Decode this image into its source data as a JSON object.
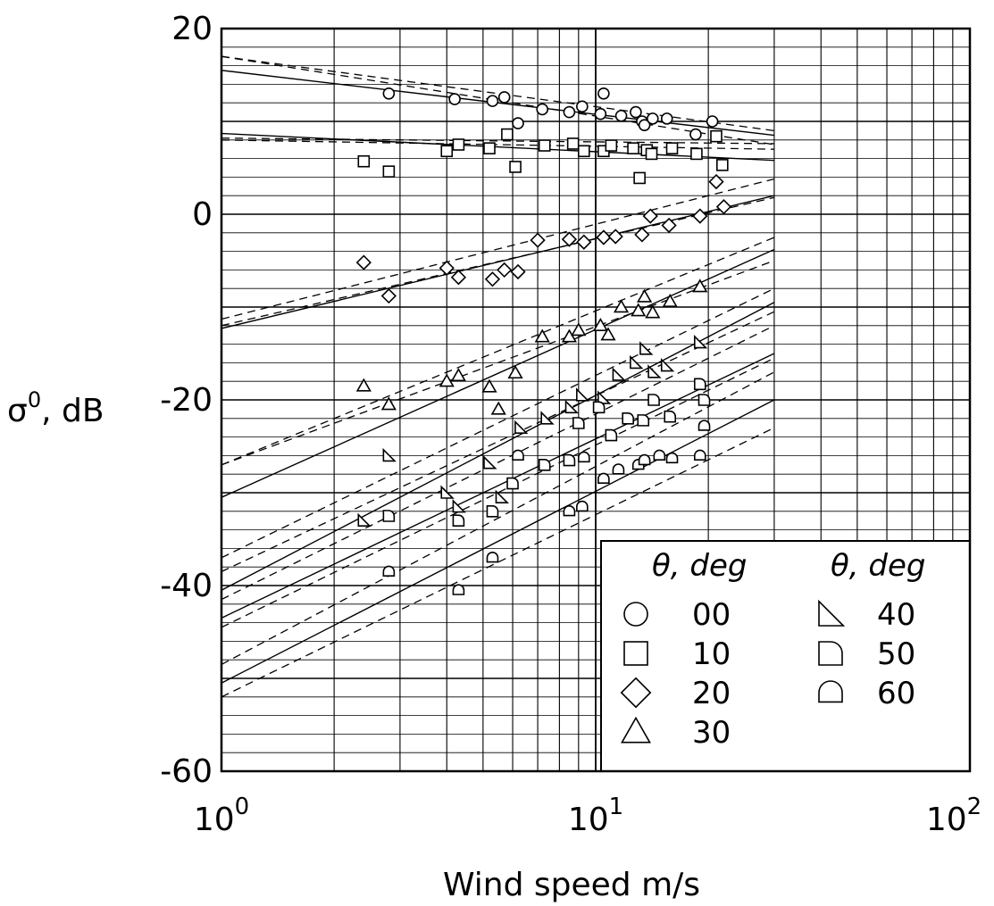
{
  "chart_data": {
    "type": "scatter",
    "title": "",
    "xlabel": "Wind speed m/s",
    "ylabel_base": "σ",
    "ylabel_sup": "0",
    "ylabel_rest": ", dB",
    "x_scale": "log",
    "xlim": [
      1,
      100
    ],
    "ylim": [
      -60,
      20
    ],
    "grid": true,
    "legend_position": "bottom-right",
    "y_ticks": [
      {
        "value": 20,
        "label": "20"
      },
      {
        "value": 0,
        "label": "0"
      },
      {
        "value": -20,
        "label": "-20"
      },
      {
        "value": -40,
        "label": "-40"
      },
      {
        "value": -60,
        "label": "-60"
      }
    ],
    "x_ticks": [
      {
        "value": 1,
        "base": "10",
        "exp": "0"
      },
      {
        "value": 10,
        "base": "10",
        "exp": "1"
      },
      {
        "value": 100,
        "base": "10",
        "exp": "2"
      }
    ],
    "legend": {
      "col1_header": "θ, deg",
      "col2_header": "θ, deg",
      "col1": [
        {
          "label": "00",
          "marker": "circle"
        },
        {
          "label": "10",
          "marker": "square"
        },
        {
          "label": "20",
          "marker": "diamond"
        },
        {
          "label": "30",
          "marker": "triangle"
        }
      ],
      "col2": [
        {
          "label": "40",
          "marker": "right-triangle"
        },
        {
          "label": "50",
          "marker": "d-shape"
        },
        {
          "label": "60",
          "marker": "dome"
        }
      ]
    },
    "series": [
      {
        "name": "00",
        "marker": "circle",
        "fit_solid": [
          [
            1,
            15.5
          ],
          [
            30,
            8.5
          ]
        ],
        "fit_dashed": [
          [
            [
              1,
              17
            ],
            [
              30,
              7.5
            ]
          ],
          [
            [
              1,
              17
            ],
            [
              30,
              9
            ]
          ]
        ],
        "points": [
          [
            2.8,
            13
          ],
          [
            4.2,
            12.4
          ],
          [
            5.3,
            12.2
          ],
          [
            5.7,
            12.6
          ],
          [
            6.2,
            9.8
          ],
          [
            7.2,
            11.3
          ],
          [
            8.5,
            11
          ],
          [
            9.2,
            11.6
          ],
          [
            10.3,
            10.8
          ],
          [
            10.5,
            13
          ],
          [
            11.7,
            10.6
          ],
          [
            12.8,
            11
          ],
          [
            13.3,
            10
          ],
          [
            13.5,
            9.6
          ],
          [
            14.2,
            10.3
          ],
          [
            15.5,
            10.3
          ],
          [
            18.5,
            8.6
          ],
          [
            20.5,
            10
          ]
        ]
      },
      {
        "name": "10",
        "marker": "square",
        "fit_solid": [
          [
            1,
            8.7
          ],
          [
            30,
            5.8
          ]
        ],
        "fit_dashed": [
          [
            [
              1,
              8
            ],
            [
              30,
              7
            ]
          ],
          [
            [
              1,
              8.2
            ],
            [
              30,
              7.6
            ]
          ]
        ],
        "points": [
          [
            2.4,
            5.7
          ],
          [
            2.8,
            4.6
          ],
          [
            4.0,
            6.8
          ],
          [
            4.3,
            7.5
          ],
          [
            5.2,
            7.1
          ],
          [
            5.8,
            8.6
          ],
          [
            6.1,
            5.1
          ],
          [
            7.3,
            7.4
          ],
          [
            8.7,
            7.6
          ],
          [
            9.3,
            6.8
          ],
          [
            10.5,
            6.8
          ],
          [
            11.0,
            7.4
          ],
          [
            12.6,
            7.1
          ],
          [
            13.1,
            3.9
          ],
          [
            13.7,
            6.9
          ],
          [
            14.1,
            6.5
          ],
          [
            16.0,
            7.1
          ],
          [
            18.6,
            6.5
          ],
          [
            21.0,
            8.4
          ],
          [
            21.8,
            5.3
          ]
        ]
      },
      {
        "name": "20",
        "marker": "diamond",
        "fit_solid": [
          [
            1,
            -12.3
          ],
          [
            30,
            2
          ]
        ],
        "fit_dashed": [
          [
            [
              1,
              -11.3
            ],
            [
              30,
              3.8
            ]
          ],
          [
            [
              1,
              -12
            ],
            [
              30,
              1.8
            ]
          ]
        ],
        "points": [
          [
            2.4,
            -5.2
          ],
          [
            2.8,
            -8.8
          ],
          [
            4.0,
            -5.8
          ],
          [
            4.3,
            -6.8
          ],
          [
            5.3,
            -7
          ],
          [
            5.7,
            -6
          ],
          [
            6.2,
            -6.2
          ],
          [
            7.0,
            -2.8
          ],
          [
            8.5,
            -2.7
          ],
          [
            9.3,
            -3
          ],
          [
            10.5,
            -2.5
          ],
          [
            11.3,
            -2.4
          ],
          [
            13.3,
            -2.2
          ],
          [
            14.0,
            -0.2
          ],
          [
            15.7,
            -1.2
          ],
          [
            19.0,
            -0.2
          ],
          [
            21.0,
            3.5
          ],
          [
            22.0,
            0.8
          ]
        ]
      },
      {
        "name": "30",
        "marker": "triangle",
        "fit_solid": [
          [
            1,
            -30.5
          ],
          [
            30,
            -3.8
          ]
        ],
        "fit_dashed": [
          [
            [
              1,
              -27
            ],
            [
              30,
              -2.5
            ]
          ],
          [
            [
              1,
              -27
            ],
            [
              30,
              -5
            ]
          ]
        ],
        "points": [
          [
            2.4,
            -18.5
          ],
          [
            2.8,
            -20.5
          ],
          [
            4.0,
            -18
          ],
          [
            4.3,
            -17.4
          ],
          [
            5.2,
            -18.6
          ],
          [
            5.5,
            -21
          ],
          [
            6.1,
            -17.1
          ],
          [
            7.2,
            -13.2
          ],
          [
            8.5,
            -13.2
          ],
          [
            9.0,
            -12.5
          ],
          [
            10.3,
            -12
          ],
          [
            10.8,
            -13
          ],
          [
            11.7,
            -10
          ],
          [
            13.0,
            -10.4
          ],
          [
            13.5,
            -8.9
          ],
          [
            14.2,
            -10.6
          ],
          [
            15.8,
            -9.4
          ],
          [
            19.0,
            -7.8
          ]
        ]
      },
      {
        "name": "40",
        "marker": "right-triangle",
        "fit_solid": [
          [
            1,
            -40.5
          ],
          [
            30,
            -9.5
          ]
        ],
        "fit_dashed": [
          [
            [
              1,
              -37
            ],
            [
              30,
              -8
            ]
          ],
          [
            [
              1,
              -38.5
            ],
            [
              30,
              -10.5
            ]
          ]
        ],
        "points": [
          [
            2.4,
            -33
          ],
          [
            2.8,
            -26
          ],
          [
            4.0,
            -30
          ],
          [
            4.3,
            -31.5
          ],
          [
            5.2,
            -26.8
          ],
          [
            5.6,
            -30.5
          ],
          [
            6.3,
            -23
          ],
          [
            7.4,
            -22
          ],
          [
            8.6,
            -20.8
          ],
          [
            9.2,
            -19.5
          ],
          [
            10.5,
            -19.8
          ],
          [
            11.5,
            -17.3
          ],
          [
            12.8,
            -16
          ],
          [
            13.6,
            -14.5
          ],
          [
            14.3,
            -17
          ],
          [
            15.5,
            -16.3
          ],
          [
            19.0,
            -13.8
          ]
        ]
      },
      {
        "name": "50",
        "marker": "d-shape",
        "fit_solid": [
          [
            1,
            -43.5
          ],
          [
            30,
            -15
          ]
        ],
        "fit_dashed": [
          [
            [
              1,
              -41.5
            ],
            [
              30,
              -12
            ]
          ],
          [
            [
              1,
              -44.5
            ],
            [
              30,
              -15.5
            ]
          ]
        ],
        "points": [
          [
            2.8,
            -32.5
          ],
          [
            4.3,
            -33
          ],
          [
            5.3,
            -32
          ],
          [
            6.0,
            -29
          ],
          [
            7.3,
            -27
          ],
          [
            8.5,
            -26.5
          ],
          [
            9.0,
            -22.5
          ],
          [
            10.2,
            -20.8
          ],
          [
            11.0,
            -23.8
          ],
          [
            12.2,
            -22
          ],
          [
            13.4,
            -22.2
          ],
          [
            14.3,
            -20
          ],
          [
            15.8,
            -21.8
          ],
          [
            19.0,
            -18.3
          ],
          [
            19.5,
            -20
          ]
        ]
      },
      {
        "name": "60",
        "marker": "dome",
        "fit_solid": [
          [
            1,
            -50.5
          ],
          [
            30,
            -20
          ]
        ],
        "fit_dashed": [
          [
            [
              1,
              -48.5
            ],
            [
              30,
              -17
            ]
          ],
          [
            [
              1,
              -52
            ],
            [
              30,
              -23
            ]
          ]
        ],
        "points": [
          [
            2.8,
            -38.5
          ],
          [
            4.3,
            -40.5
          ],
          [
            5.3,
            -37
          ],
          [
            6.2,
            -26
          ],
          [
            8.5,
            -32
          ],
          [
            9.2,
            -31.5
          ],
          [
            9.3,
            -26.2
          ],
          [
            10.5,
            -28.5
          ],
          [
            11.5,
            -27.5
          ],
          [
            13.0,
            -27
          ],
          [
            13.5,
            -26.5
          ],
          [
            14.8,
            -26
          ],
          [
            16.0,
            -26.3
          ],
          [
            19.0,
            -26
          ],
          [
            19.5,
            -22.8
          ]
        ]
      }
    ]
  }
}
